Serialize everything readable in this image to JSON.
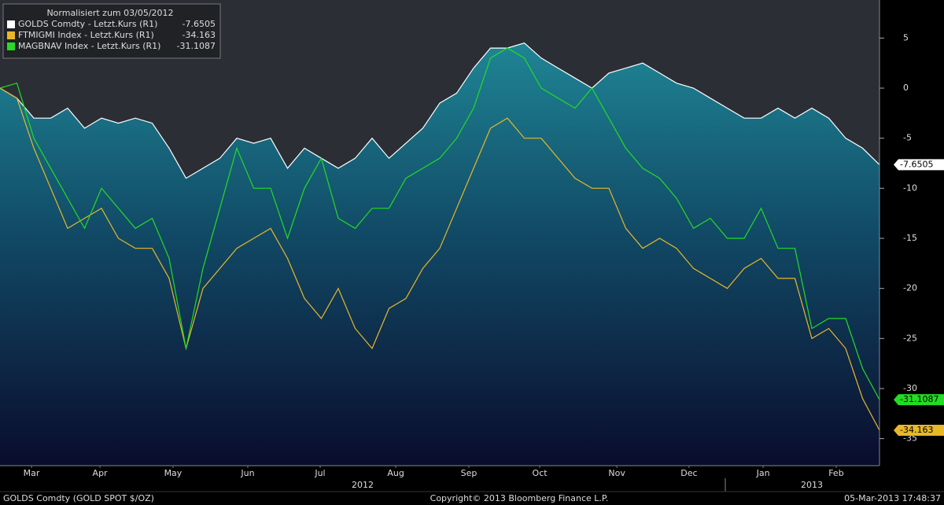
{
  "chart_data": {
    "type": "line",
    "legend_title": "Normalisiert zum 03/05/2012",
    "legend": "top-left",
    "series": [
      {
        "name": "GOLDS Comdty - Letzt.Kurs (R1)",
        "color": "#ffffff",
        "area": true,
        "values": [
          0,
          -1,
          -3,
          -3,
          -2,
          -4,
          -3,
          -3.5,
          -3,
          -3.5,
          -6,
          -9,
          -8,
          -7,
          -5,
          -5.5,
          -5,
          -8,
          -6,
          -7,
          -8,
          -7,
          -5,
          -7,
          -5.5,
          -4,
          -1.5,
          -0.5,
          2,
          4,
          4,
          4.5,
          3,
          2,
          1,
          0,
          1.5,
          2,
          2.5,
          1.5,
          0.5,
          0,
          -1,
          -2,
          -3,
          -3,
          -2,
          -3,
          -2,
          -3,
          -5,
          -6,
          -7.6505
        ]
      },
      {
        "name": "FTMIGMI Index - Letzt.Kurs (R1)",
        "color": "#e8b828",
        "values": [
          0,
          -1,
          -6,
          -10,
          -14,
          -13,
          -12,
          -15,
          -16,
          -16,
          -19,
          -26,
          -20,
          -18,
          -16,
          -15,
          -14,
          -17,
          -21,
          -23,
          -20,
          -24,
          -26,
          -22,
          -21,
          -18,
          -16,
          -12,
          -8,
          -4,
          -3,
          -5,
          -5,
          -7,
          -9,
          -10,
          -10,
          -14,
          -16,
          -15,
          -16,
          -18,
          -19,
          -20,
          -18,
          -17,
          -19,
          -19,
          -25,
          -24,
          -26,
          -31,
          -34.163
        ]
      },
      {
        "name": "MAGBNAV Index - Letzt.Kurs (R1)",
        "color": "#22dd22",
        "values": [
          0,
          0.5,
          -5,
          -8,
          -11,
          -14,
          -10,
          -12,
          -14,
          -13,
          -17,
          -26,
          -18,
          -12,
          -6,
          -10,
          -10,
          -15,
          -10,
          -7,
          -13,
          -14,
          -12,
          -12,
          -9,
          -8,
          -7,
          -5,
          -2,
          3,
          4,
          3,
          0,
          -1,
          -2,
          0,
          -3,
          -6,
          -8,
          -9,
          -11,
          -14,
          -13,
          -15,
          -15,
          -12,
          -16,
          -16,
          -24,
          -23,
          -23,
          -28,
          -31.1087
        ]
      }
    ],
    "xlim": [
      0,
      52
    ],
    "xticks": [
      {
        "value": 1.86,
        "label": "Mar"
      },
      {
        "value": 5.91,
        "label": "Apr"
      },
      {
        "value": 10.23,
        "label": "May"
      },
      {
        "value": 14.65,
        "label": "Jun"
      },
      {
        "value": 18.93,
        "label": "Jul"
      },
      {
        "value": 23.4,
        "label": "Aug"
      },
      {
        "value": 27.72,
        "label": "Sep"
      },
      {
        "value": 31.91,
        "label": "Oct"
      },
      {
        "value": 36.47,
        "label": "Nov"
      },
      {
        "value": 40.74,
        "label": "Dec"
      },
      {
        "value": 45.12,
        "label": "Jan"
      },
      {
        "value": 49.44,
        "label": "Feb"
      }
    ],
    "year_ticks": [
      {
        "value": 21.44,
        "label": "2012"
      },
      {
        "value": 48.0,
        "label": "2013"
      }
    ],
    "ylim": [
      -37.7,
      8.8
    ],
    "yticks": [
      5,
      0,
      -5,
      -10,
      -15,
      -20,
      -25,
      -30,
      -35
    ],
    "footer_left": "GOLDS Comdty (GOLD SPOT $/OZ)",
    "footer_center": "Copyright© 2013 Bloomberg Finance L.P.",
    "footer_right": "05-Mar-2013 17:48:37"
  }
}
